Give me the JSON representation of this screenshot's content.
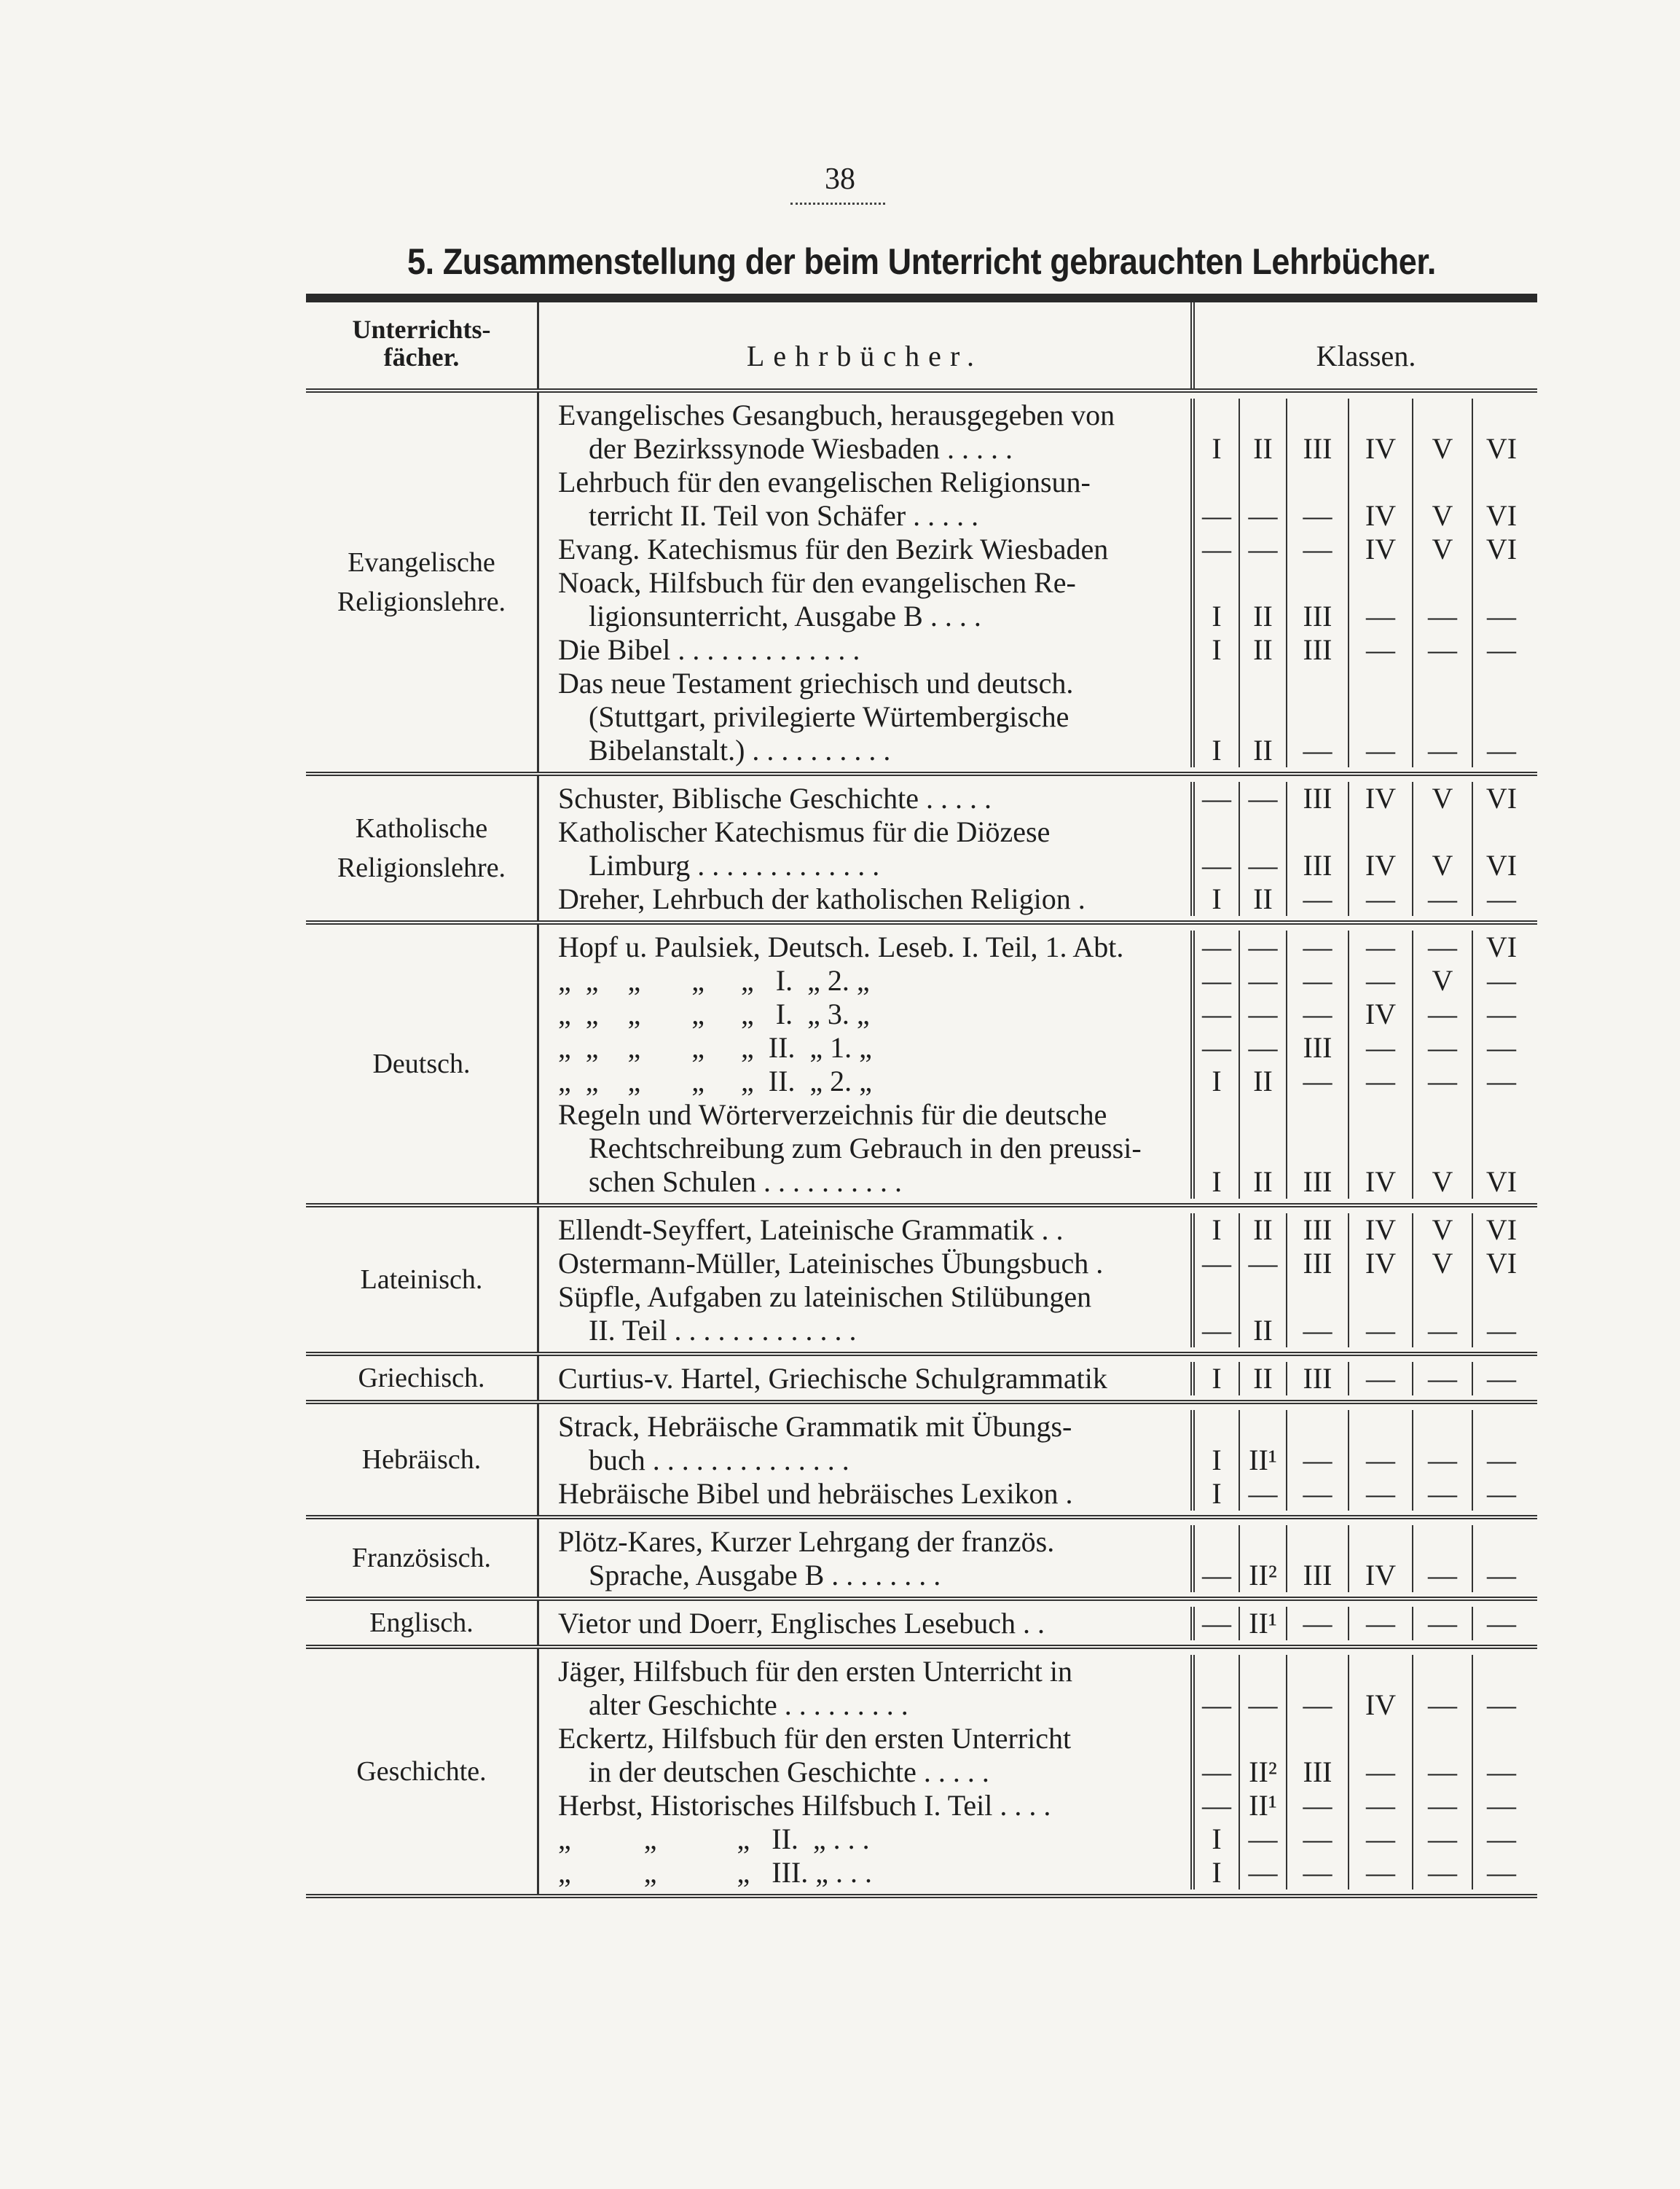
{
  "page_number": "38",
  "title": "5. Zusammenstellung der beim Unterricht gebrauchten Lehrbücher.",
  "header": {
    "subject_line1": "Unterrichts-",
    "subject_line2": "fächer.",
    "books": "Lehrbücher.",
    "classes": "Klassen."
  },
  "sections": [
    {
      "subject": [
        "Evangelische",
        "Religionslehre."
      ],
      "entries": [
        {
          "lines": [
            "Evangelisches Gesangbuch, herausgegeben von",
            "der Bezirkssynode Wiesbaden . . . . ."
          ],
          "classes": [
            "I",
            "II",
            "III",
            "IV",
            "V",
            "VI"
          ]
        },
        {
          "lines": [
            "Lehrbuch für den evangelischen Religionsun-",
            "terricht II. Teil von Schäfer . . . . ."
          ],
          "classes": [
            "—",
            "—",
            "—",
            "IV",
            "V",
            "VI"
          ]
        },
        {
          "lines": [
            "Evang. Katechismus für den Bezirk Wiesbaden"
          ],
          "classes": [
            "—",
            "—",
            "—",
            "IV",
            "V",
            "VI"
          ]
        },
        {
          "lines": [
            "Noack, Hilfsbuch für den evangelischen Re-",
            "ligionsunterricht, Ausgabe B . . . ."
          ],
          "classes": [
            "I",
            "II",
            "III",
            "—",
            "—",
            "—"
          ]
        },
        {
          "lines": [
            "Die Bibel . . . . . . . . . . . . ."
          ],
          "classes": [
            "I",
            "II",
            "III",
            "—",
            "—",
            "—"
          ]
        },
        {
          "lines": [
            "Das neue Testament griechisch und deutsch.",
            "(Stuttgart, privilegierte Würtembergische",
            "Bibelanstalt.) . . . . . . . . . ."
          ],
          "classes": [
            "I",
            "II",
            "—",
            "—",
            "—",
            "—"
          ]
        }
      ]
    },
    {
      "subject": [
        "Katholische",
        "Religionslehre."
      ],
      "entries": [
        {
          "lines": [
            "Schuster, Biblische Geschichte . . . . ."
          ],
          "classes": [
            "—",
            "—",
            "III",
            "IV",
            "V",
            "VI"
          ]
        },
        {
          "lines": [
            "Katholischer Katechismus für die Diözese",
            "Limburg . . . . . . . . . . . . ."
          ],
          "classes": [
            "—",
            "—",
            "III",
            "IV",
            "V",
            "VI"
          ]
        },
        {
          "lines": [
            "Dreher, Lehrbuch der katholischen Religion ."
          ],
          "classes": [
            "I",
            "II",
            "—",
            "—",
            "—",
            "—"
          ]
        }
      ]
    },
    {
      "subject": [
        "Deutsch."
      ],
      "entries": [
        {
          "lines": [
            "Hopf u. Paulsiek, Deutsch. Leseb. I. Teil, 1. Abt."
          ],
          "classes": [
            "—",
            "—",
            "—",
            "—",
            "—",
            "VI"
          ]
        },
        {
          "lines": [
            "„  „    „       „     „   I.  „ 2. „"
          ],
          "classes": [
            "—",
            "—",
            "—",
            "—",
            "V",
            "—"
          ]
        },
        {
          "lines": [
            "„  „    „       „     „   I.  „ 3. „"
          ],
          "classes": [
            "—",
            "—",
            "—",
            "IV",
            "—",
            "—"
          ]
        },
        {
          "lines": [
            "„  „    „       „     „  II.  „ 1. „"
          ],
          "classes": [
            "—",
            "—",
            "III",
            "—",
            "—",
            "—"
          ]
        },
        {
          "lines": [
            "„  „    „       „     „  II.  „ 2. „"
          ],
          "classes": [
            "I",
            "II",
            "—",
            "—",
            "—",
            "—"
          ]
        },
        {
          "lines": [
            "Regeln und Wörterverzeichnis für die deutsche",
            "Rechtschreibung zum Gebrauch in den preussi-",
            "schen Schulen . . . . . . . . . ."
          ],
          "classes": [
            "I",
            "II",
            "III",
            "IV",
            "V",
            "VI"
          ]
        }
      ]
    },
    {
      "subject": [
        "Lateinisch."
      ],
      "entries": [
        {
          "lines": [
            "Ellendt-Seyffert, Lateinische Grammatik . ."
          ],
          "classes": [
            "I",
            "II",
            "III",
            "IV",
            "V",
            "VI"
          ]
        },
        {
          "lines": [
            "Ostermann-Müller, Lateinisches Übungsbuch ."
          ],
          "classes": [
            "—",
            "—",
            "III",
            "IV",
            "V",
            "VI"
          ]
        },
        {
          "lines": [
            "Süpfle, Aufgaben zu lateinischen Stilübungen",
            "II. Teil . . . . . . . . . . . . ."
          ],
          "classes": [
            "—",
            "II",
            "—",
            "—",
            "—",
            "—"
          ]
        }
      ]
    },
    {
      "subject": [
        "Griechisch."
      ],
      "entries": [
        {
          "lines": [
            "Curtius-v. Hartel, Griechische Schulgrammatik"
          ],
          "classes": [
            "I",
            "II",
            "III",
            "—",
            "—",
            "—"
          ]
        }
      ]
    },
    {
      "subject": [
        "Hebräisch."
      ],
      "entries": [
        {
          "lines": [
            "Strack, Hebräische Grammatik mit Übungs-",
            "buch . . . . . . . . . . . . . ."
          ],
          "classes": [
            "I",
            "II¹",
            "—",
            "—",
            "—",
            "—"
          ]
        },
        {
          "lines": [
            "Hebräische Bibel und hebräisches Lexikon ."
          ],
          "classes": [
            "I",
            "—",
            "—",
            "—",
            "—",
            "—"
          ]
        }
      ]
    },
    {
      "subject": [
        "Französisch."
      ],
      "entries": [
        {
          "lines": [
            "Plötz-Kares, Kurzer Lehrgang der französ.",
            "Sprache, Ausgabe B . . . . . . . ."
          ],
          "classes": [
            "—",
            "II²",
            "III",
            "IV",
            "—",
            "—"
          ]
        }
      ]
    },
    {
      "subject": [
        "Englisch."
      ],
      "entries": [
        {
          "lines": [
            "Vietor und Doerr, Englisches Lesebuch . ."
          ],
          "classes": [
            "—",
            "II¹",
            "—",
            "—",
            "—",
            "—"
          ]
        }
      ]
    },
    {
      "subject": [
        "Geschichte."
      ],
      "entries": [
        {
          "lines": [
            "Jäger, Hilfsbuch für den ersten Unterricht in",
            "alter Geschichte . . . . . . . . ."
          ],
          "classes": [
            "—",
            "—",
            "—",
            "IV",
            "—",
            "—"
          ]
        },
        {
          "lines": [
            "Eckertz, Hilfsbuch für den ersten Unterricht",
            "in der deutschen Geschichte . . . . ."
          ],
          "classes": [
            "—",
            "II²",
            "III",
            "—",
            "—",
            "—"
          ]
        },
        {
          "lines": [
            "Herbst, Historisches Hilfsbuch I. Teil . . . ."
          ],
          "classes": [
            "—",
            "II¹",
            "—",
            "—",
            "—",
            "—"
          ]
        },
        {
          "lines": [
            "„          „           „   II.  „ . . ."
          ],
          "classes": [
            "I",
            "—",
            "—",
            "—",
            "—",
            "—"
          ]
        },
        {
          "lines": [
            "„          „           „   III. „ . . ."
          ],
          "classes": [
            "I",
            "—",
            "—",
            "—",
            "—",
            "—"
          ]
        }
      ]
    }
  ]
}
